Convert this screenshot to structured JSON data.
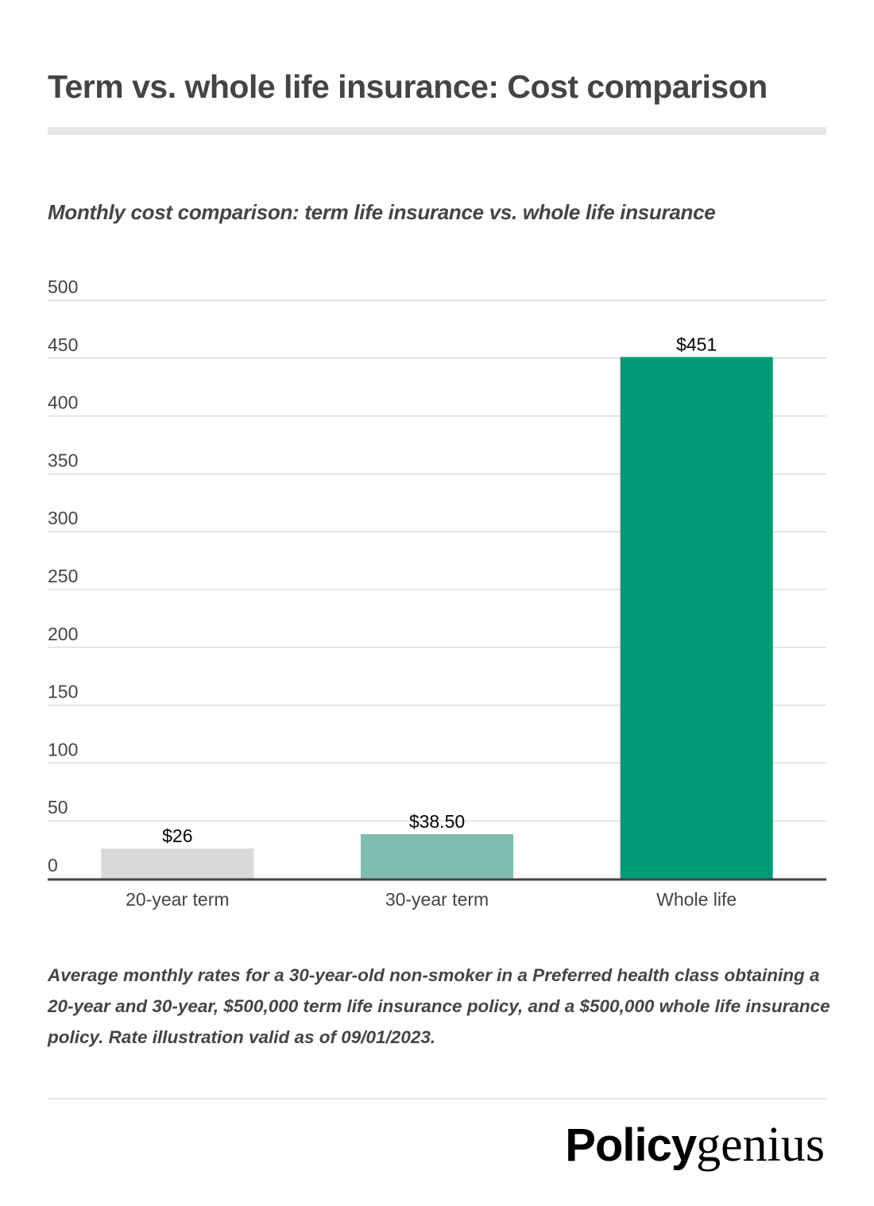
{
  "header": {
    "title": "Term vs. whole life insurance: Cost comparison"
  },
  "chart_data": {
    "type": "bar",
    "title": "Monthly cost comparison: term life insurance vs. whole life insurance",
    "categories": [
      "20-year term",
      "30-year term",
      "Whole life"
    ],
    "values": [
      26,
      38.5,
      451
    ],
    "data_labels": [
      "$26",
      "$38.50",
      "$451"
    ],
    "colors": [
      "#d9d9d9",
      "#80bbb0",
      "#009b77"
    ],
    "ylim": [
      0,
      500
    ],
    "yticks": [
      0,
      50,
      100,
      150,
      200,
      250,
      300,
      350,
      400,
      450,
      500
    ],
    "grid": true,
    "xlabel": "",
    "ylabel": ""
  },
  "footnote": "Average monthly rates for a 30-year-old non-smoker in a Preferred health class obtaining a 20-year and 30-year, $500,000 term life insurance policy, and a $500,000 whole life insurance policy. Rate illustration valid as of 09/01/2023.",
  "logo": {
    "part1": "Policy",
    "part2": "genius"
  }
}
